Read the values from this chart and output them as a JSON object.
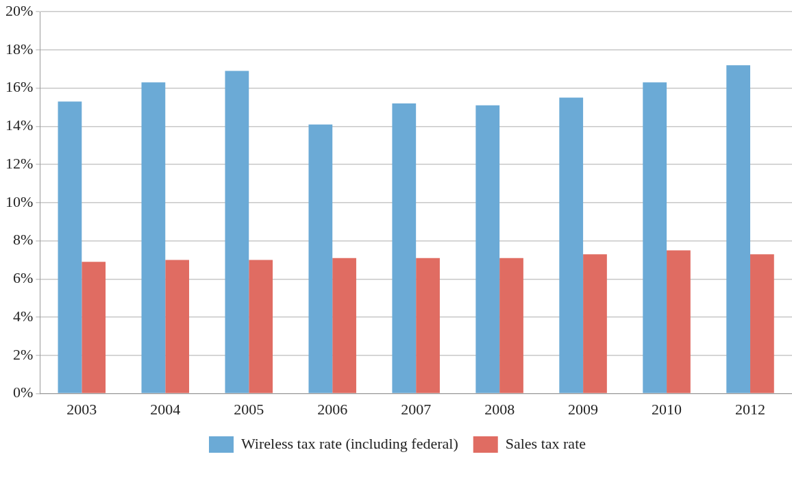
{
  "chart_data": {
    "type": "bar",
    "categories": [
      "2003",
      "2004",
      "2005",
      "2006",
      "2007",
      "2008",
      "2009",
      "2010",
      "2012"
    ],
    "series": [
      {
        "name": "Wireless tax rate (including federal)",
        "color": "#6baad6",
        "values": [
          15.3,
          16.3,
          16.9,
          14.1,
          15.2,
          15.1,
          15.5,
          16.3,
          17.2
        ]
      },
      {
        "name": "Sales tax rate",
        "color": "#e06c62",
        "values": [
          6.9,
          7.0,
          7.0,
          7.1,
          7.1,
          7.1,
          7.3,
          7.5,
          7.3
        ]
      }
    ],
    "ylim": [
      0,
      20
    ],
    "yticks": [
      {
        "value": 0,
        "label": "0%"
      },
      {
        "value": 2,
        "label": "2%"
      },
      {
        "value": 4,
        "label": "4%"
      },
      {
        "value": 6,
        "label": "6%"
      },
      {
        "value": 8,
        "label": "8%"
      },
      {
        "value": 10,
        "label": "10%"
      },
      {
        "value": 12,
        "label": "12%"
      },
      {
        "value": 14,
        "label": "14%"
      },
      {
        "value": 16,
        "label": "16%"
      },
      {
        "value": 18,
        "label": "18%"
      },
      {
        "value": 20,
        "label": "20%"
      }
    ],
    "grid": "y",
    "legend": "bottom"
  }
}
